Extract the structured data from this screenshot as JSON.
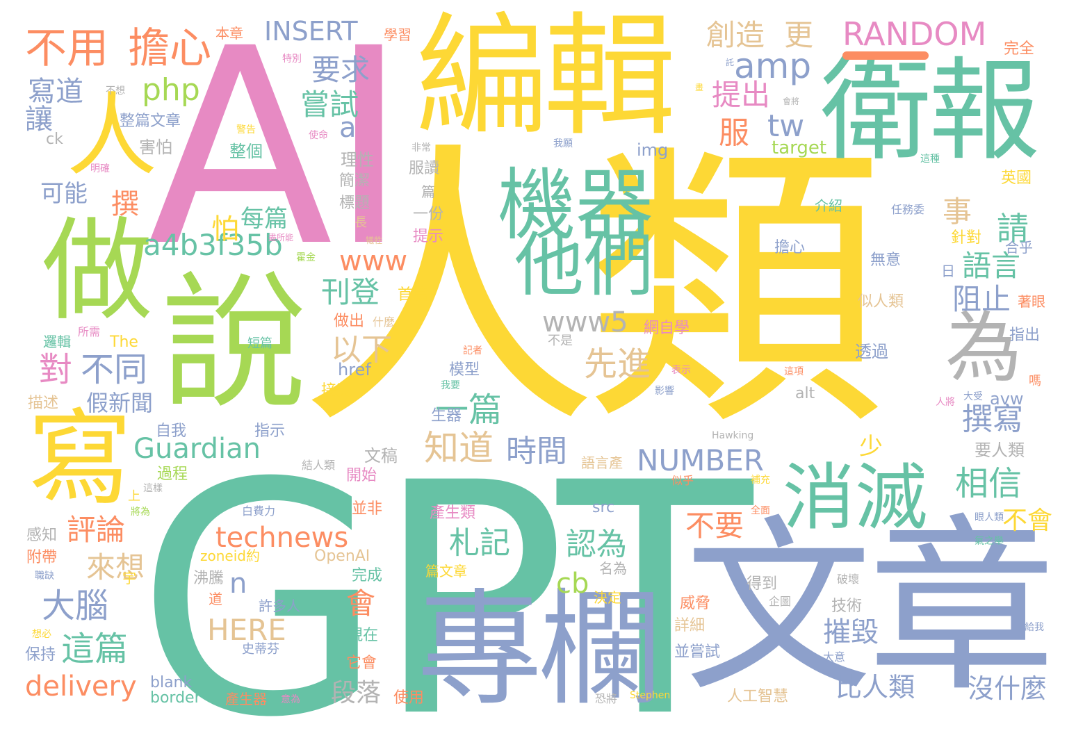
{
  "palette": {
    "yellow": "#FDD835",
    "green": "#66C2A5",
    "pink": "#E78AC3",
    "lime": "#A6D854",
    "periwinkle": "#8DA0CB",
    "orange": "#FC8D62",
    "tan": "#E5C494",
    "gray": "#B3B3B3"
  },
  "words": [
    {
      "text": "人類",
      "color": "#FDD835"
    },
    {
      "text": "GPT",
      "color": "#66C2A5"
    },
    {
      "text": "AI",
      "color": "#E78AC3"
    },
    {
      "text": "文章",
      "color": "#8DA0CB"
    },
    {
      "text": "編輯",
      "color": "#FDD835"
    },
    {
      "text": "說",
      "color": "#A6D854"
    },
    {
      "text": "衛報",
      "color": "#66C2A5"
    },
    {
      "text": "專欄",
      "color": "#8DA0CB"
    },
    {
      "text": "做",
      "color": "#A6D854"
    },
    {
      "text": "寫",
      "color": "#FDD835"
    },
    {
      "text": "人",
      "color": "#FDD835"
    },
    {
      "text": "機器",
      "color": "#66C2A5"
    },
    {
      "text": "他們",
      "color": "#66C2A5"
    },
    {
      "text": "消滅",
      "color": "#66C2A5"
    },
    {
      "text": "為",
      "color": "#B3B3B3"
    },
    {
      "text": "不用",
      "color": "#FC8D62"
    },
    {
      "text": "擔心",
      "color": "#FC8D62"
    },
    {
      "text": "INSERT",
      "color": "#8DA0CB"
    },
    {
      "text": "RANDOM",
      "color": "#E78AC3"
    },
    {
      "text": "創造",
      "color": "#E5C494"
    },
    {
      "text": "更",
      "color": "#E5C494"
    },
    {
      "text": "amp",
      "color": "#8DA0CB"
    },
    {
      "text": "要求",
      "color": "#8DA0CB"
    },
    {
      "text": "提出",
      "color": "#E78AC3"
    },
    {
      "text": "嘗試",
      "color": "#66C2A5"
    },
    {
      "text": "php",
      "color": "#A6D854"
    },
    {
      "text": "a",
      "color": "#8DA0CB"
    },
    {
      "text": "tw",
      "color": "#8DA0CB"
    },
    {
      "text": "服",
      "color": "#FC8D62"
    },
    {
      "text": "a4b3f35b",
      "color": "#66C2A5"
    },
    {
      "text": "www",
      "color": "#FC8D62"
    },
    {
      "text": "www5",
      "color": "#B3B3B3"
    },
    {
      "text": "刊登",
      "color": "#66C2A5"
    },
    {
      "text": "以下",
      "color": "#E5C494"
    },
    {
      "text": "先進",
      "color": "#E5C494"
    },
    {
      "text": "語言",
      "color": "#66C2A5"
    },
    {
      "text": "請",
      "color": "#66C2A5"
    },
    {
      "text": "事",
      "color": "#E5C494"
    },
    {
      "text": "阻止",
      "color": "#8DA0CB"
    },
    {
      "text": "對",
      "color": "#E78AC3"
    },
    {
      "text": "不同",
      "color": "#8DA0CB"
    },
    {
      "text": "假新聞",
      "color": "#8DA0CB"
    },
    {
      "text": "Guardian",
      "color": "#66C2A5"
    },
    {
      "text": "一篇",
      "color": "#66C2A5"
    },
    {
      "text": "知道",
      "color": "#E5C494"
    },
    {
      "text": "時間",
      "color": "#8DA0CB"
    },
    {
      "text": "撰寫",
      "color": "#8DA0CB"
    },
    {
      "text": "NUMBER",
      "color": "#8DA0CB"
    },
    {
      "text": "相信",
      "color": "#66C2A5"
    },
    {
      "text": "不會",
      "color": "#FDD835"
    },
    {
      "text": "不要",
      "color": "#FC8D62"
    },
    {
      "text": "technews",
      "color": "#FC8D62"
    },
    {
      "text": "札記",
      "color": "#66C2A5"
    },
    {
      "text": "認為",
      "color": "#66C2A5"
    },
    {
      "text": "評論",
      "color": "#FC8D62"
    },
    {
      "text": "來想",
      "color": "#E5C494"
    },
    {
      "text": "大腦",
      "color": "#8DA0CB"
    },
    {
      "text": "這篇",
      "color": "#66C2A5"
    },
    {
      "text": "delivery",
      "color": "#FC8D62"
    },
    {
      "text": "HERE",
      "color": "#E5C494"
    },
    {
      "text": "段落",
      "color": "#B3B3B3"
    },
    {
      "text": "比人類",
      "color": "#8DA0CB"
    },
    {
      "text": "沒什麼",
      "color": "#8DA0CB"
    },
    {
      "text": "摧毀",
      "color": "#8DA0CB"
    },
    {
      "text": "cb",
      "color": "#A6D854"
    },
    {
      "text": "n",
      "color": "#8DA0CB"
    },
    {
      "text": "會",
      "color": "#FC8D62"
    },
    {
      "text": "可能",
      "color": "#8DA0CB"
    },
    {
      "text": "撰",
      "color": "#FC8D62"
    },
    {
      "text": "寫道",
      "color": "#8DA0CB"
    },
    {
      "text": "讓",
      "color": "#8DA0CB"
    },
    {
      "text": "每篇",
      "color": "#66C2A5"
    },
    {
      "text": "怕",
      "color": "#FDD835"
    },
    {
      "text": "整篇文章",
      "color": "#8DA0CB"
    },
    {
      "text": "害怕",
      "color": "#B3B3B3"
    },
    {
      "text": "整個",
      "color": "#66C2A5"
    },
    {
      "text": "本章",
      "color": "#FC8D62"
    },
    {
      "text": "學習",
      "color": "#FC8D62"
    },
    {
      "text": "完全",
      "color": "#FC8D62"
    },
    {
      "text": "ck",
      "color": "#B3B3B3"
    },
    {
      "text": "理性",
      "color": "#B3B3B3"
    },
    {
      "text": "簡潔",
      "color": "#B3B3B3"
    },
    {
      "text": "標題",
      "color": "#B3B3B3"
    },
    {
      "text": "服讀",
      "color": "#B3B3B3"
    },
    {
      "text": "篇",
      "color": "#B3B3B3"
    },
    {
      "text": "一份",
      "color": "#B3B3B3"
    },
    {
      "text": "提示",
      "color": "#E78AC3"
    },
    {
      "text": "img",
      "color": "#8DA0CB"
    },
    {
      "text": "target",
      "color": "#A6D854"
    },
    {
      "text": "英國",
      "color": "#FDD835"
    },
    {
      "text": "介紹",
      "color": "#66C2A5"
    },
    {
      "text": "任務委",
      "color": "#8DA0CB"
    },
    {
      "text": "針對",
      "color": "#FDD835"
    },
    {
      "text": "合乎",
      "color": "#8DA0CB"
    },
    {
      "text": "無意",
      "color": "#8DA0CB"
    },
    {
      "text": "擔心",
      "color": "#8DA0CB"
    },
    {
      "text": "日",
      "color": "#8DA0CB"
    },
    {
      "text": "似人類",
      "color": "#E5C494"
    },
    {
      "text": "著眼",
      "color": "#FC8D62"
    },
    {
      "text": "透過",
      "color": "#8DA0CB"
    },
    {
      "text": "指出",
      "color": "#8DA0CB"
    },
    {
      "text": "首篇",
      "color": "#FDD835"
    },
    {
      "text": "什麼",
      "color": "#E5C494"
    },
    {
      "text": "做出",
      "color": "#FC8D62"
    },
    {
      "text": "網自學",
      "color": "#E78AC3"
    },
    {
      "text": "不是",
      "color": "#B3B3B3"
    },
    {
      "text": "記者",
      "color": "#FC8D62"
    },
    {
      "text": "表示",
      "color": "#E78AC3"
    },
    {
      "text": "模型",
      "color": "#8DA0CB"
    },
    {
      "text": "href",
      "color": "#8DA0CB"
    },
    {
      "text": "接受",
      "color": "#FDD835"
    },
    {
      "text": "我要",
      "color": "#66C2A5"
    },
    {
      "text": "影響",
      "color": "#8DA0CB"
    },
    {
      "text": "這項",
      "color": "#FC8D62"
    },
    {
      "text": "alt",
      "color": "#B3B3B3"
    },
    {
      "text": "avw",
      "color": "#8DA0CB"
    },
    {
      "text": "嗎",
      "color": "#FC8D62"
    },
    {
      "text": "大受",
      "color": "#8DA0CB"
    },
    {
      "text": "人將",
      "color": "#E78AC3"
    },
    {
      "text": "生器",
      "color": "#8DA0CB"
    },
    {
      "text": "邏輯",
      "color": "#66C2A5"
    },
    {
      "text": "所需",
      "color": "#E78AC3"
    },
    {
      "text": "The",
      "color": "#FDD835"
    },
    {
      "text": "短篇",
      "color": "#66C2A5"
    },
    {
      "text": "描述",
      "color": "#E5C494"
    },
    {
      "text": "自我",
      "color": "#8DA0CB"
    },
    {
      "text": "指示",
      "color": "#8DA0CB"
    },
    {
      "text": "文稿",
      "color": "#B3B3B3"
    },
    {
      "text": "少",
      "color": "#FDD835"
    },
    {
      "text": "過程",
      "color": "#A6D854"
    },
    {
      "text": "結人類",
      "color": "#B3B3B3"
    },
    {
      "text": "開始",
      "color": "#E78AC3"
    },
    {
      "text": "語言產",
      "color": "#E5C494"
    },
    {
      "text": "似乎",
      "color": "#FC8D62"
    },
    {
      "text": "Hawking",
      "color": "#B3B3B3"
    },
    {
      "text": "要人類",
      "color": "#B3B3B3"
    },
    {
      "text": "補充",
      "color": "#FDD835"
    },
    {
      "text": "全面",
      "color": "#FC8D62"
    },
    {
      "text": "氣之舉",
      "color": "#66C2A5"
    },
    {
      "text": "眼人類",
      "color": "#8DA0CB"
    },
    {
      "text": "上",
      "color": "#FDD835"
    },
    {
      "text": "這樣",
      "color": "#B3B3B3"
    },
    {
      "text": "將為",
      "color": "#A6D854"
    },
    {
      "text": "並非",
      "color": "#FC8D62"
    },
    {
      "text": "白費力",
      "color": "#8DA0CB"
    },
    {
      "text": "產生類",
      "color": "#E78AC3"
    },
    {
      "text": "src",
      "color": "#8DA0CB"
    },
    {
      "text": "感知",
      "color": "#B3B3B3"
    },
    {
      "text": "附帶",
      "color": "#FC8D62"
    },
    {
      "text": "zoneid約",
      "color": "#FDD835"
    },
    {
      "text": "OpenAI",
      "color": "#E5C494"
    },
    {
      "text": "完成",
      "color": "#66C2A5"
    },
    {
      "text": "篇文章",
      "color": "#FDD835"
    },
    {
      "text": "名為",
      "color": "#B3B3B3"
    },
    {
      "text": "決定",
      "color": "#FDD835"
    },
    {
      "text": "得到",
      "color": "#B3B3B3"
    },
    {
      "text": "企圖",
      "color": "#B3B3B3"
    },
    {
      "text": "破壞",
      "color": "#B3B3B3"
    },
    {
      "text": "威脅",
      "color": "#FC8D62"
    },
    {
      "text": "技術",
      "color": "#B3B3B3"
    },
    {
      "text": "詳細",
      "color": "#E5C494"
    },
    {
      "text": "職缺",
      "color": "#8DA0CB"
    },
    {
      "text": "宇",
      "color": "#FDD835"
    },
    {
      "text": "沸騰",
      "color": "#B3B3B3"
    },
    {
      "text": "道",
      "color": "#FC8D62"
    },
    {
      "text": "許多人",
      "color": "#8DA0CB"
    },
    {
      "text": "想必",
      "color": "#FDD835"
    },
    {
      "text": "保持",
      "color": "#8DA0CB"
    },
    {
      "text": "史蒂芬",
      "color": "#8DA0CB"
    },
    {
      "text": "現在",
      "color": "#66C2A5"
    },
    {
      "text": "並嘗試",
      "color": "#8DA0CB"
    },
    {
      "text": "大意",
      "color": "#8DA0CB"
    },
    {
      "text": "給我",
      "color": "#8DA0CB"
    },
    {
      "text": "它會",
      "color": "#FC8D62"
    },
    {
      "text": "blank",
      "color": "#8DA0CB"
    },
    {
      "text": "border",
      "color": "#66C2A5"
    },
    {
      "text": "產生器",
      "color": "#FC8D62"
    },
    {
      "text": "意為",
      "color": "#E78AC3"
    },
    {
      "text": "使用",
      "color": "#FC8D62"
    },
    {
      "text": "恐將",
      "color": "#B3B3B3"
    },
    {
      "text": "Stephen",
      "color": "#FDD835"
    },
    {
      "text": "人工智慧",
      "color": "#E5C494"
    },
    {
      "text": "特別",
      "color": "#E78AC3"
    },
    {
      "text": "託",
      "color": "#8DA0CB"
    },
    {
      "text": "不想",
      "color": "#B3B3B3"
    },
    {
      "text": "警告",
      "color": "#FDD835"
    },
    {
      "text": "使命",
      "color": "#E78AC3"
    },
    {
      "text": "非常",
      "color": "#B3B3B3"
    },
    {
      "text": "我願",
      "color": "#8DA0CB"
    },
    {
      "text": "這種",
      "color": "#66C2A5"
    },
    {
      "text": "明確",
      "color": "#E78AC3"
    },
    {
      "text": "畫",
      "color": "#FDD835"
    },
    {
      "text": "會將",
      "color": "#B3B3B3"
    },
    {
      "text": "長",
      "color": "#E5C494"
    },
    {
      "text": "盡所能",
      "color": "#E78AC3"
    },
    {
      "text": "犧牲",
      "color": "#E5C494"
    },
    {
      "text": "霍金",
      "color": "#A6D854"
    }
  ]
}
